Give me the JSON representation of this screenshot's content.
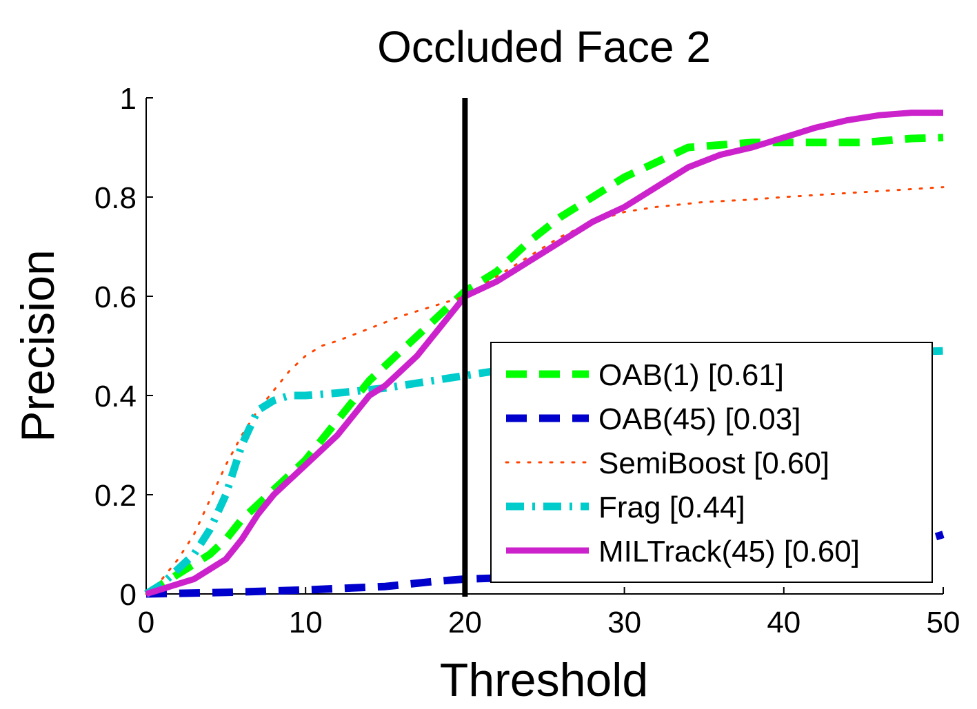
{
  "chart_data": {
    "type": "line",
    "title": "Occluded Face 2",
    "xlabel": "Threshold",
    "ylabel": "Precision",
    "xlim": [
      0,
      50
    ],
    "ylim": [
      0,
      1
    ],
    "xticks": [
      0,
      10,
      20,
      30,
      40,
      50
    ],
    "yticks": [
      0,
      0.2,
      0.4,
      0.6,
      0.8,
      1
    ],
    "xtick_labels": [
      "0",
      "10",
      "20",
      "30",
      "40",
      "50"
    ],
    "ytick_labels": [
      "0",
      "0.2",
      "0.4",
      "0.6",
      "0.8",
      "1"
    ],
    "grid": false,
    "legend_position": "lower-right",
    "threshold_line": 20,
    "series": [
      {
        "name": "OAB(1) [0.61]",
        "color": "#00ff00",
        "style": "dashed",
        "x": [
          0,
          2,
          4,
          5,
          6,
          7,
          8,
          9,
          10,
          11,
          12,
          13,
          14,
          15,
          16,
          17,
          18,
          19,
          20,
          22,
          24,
          26,
          28,
          30,
          32,
          34,
          36,
          38,
          40,
          42,
          45,
          48,
          50
        ],
        "y": [
          0,
          0.04,
          0.08,
          0.11,
          0.15,
          0.18,
          0.21,
          0.24,
          0.27,
          0.31,
          0.35,
          0.39,
          0.43,
          0.46,
          0.49,
          0.52,
          0.55,
          0.58,
          0.61,
          0.65,
          0.71,
          0.76,
          0.8,
          0.84,
          0.87,
          0.9,
          0.905,
          0.91,
          0.91,
          0.91,
          0.91,
          0.918,
          0.92
        ]
      },
      {
        "name": "OAB(45) [0.03]",
        "color": "#0000cc",
        "style": "dashed",
        "x": [
          0,
          5,
          10,
          15,
          18,
          20,
          25,
          30,
          35,
          40,
          45,
          48,
          50
        ],
        "y": [
          0,
          0.003,
          0.008,
          0.015,
          0.025,
          0.03,
          0.035,
          0.04,
          0.045,
          0.055,
          0.07,
          0.1,
          0.12
        ]
      },
      {
        "name": "SemiBoost [0.60]",
        "color": "#ff4400",
        "style": "dotted",
        "x": [
          0,
          1,
          2,
          3,
          4,
          5,
          6,
          7,
          8,
          9,
          10,
          11,
          12,
          14,
          16,
          18,
          20,
          22,
          24,
          26,
          28,
          30,
          32,
          35,
          38,
          40,
          45,
          50
        ],
        "y": [
          0,
          0.03,
          0.07,
          0.12,
          0.19,
          0.26,
          0.32,
          0.37,
          0.41,
          0.45,
          0.48,
          0.5,
          0.51,
          0.535,
          0.56,
          0.58,
          0.6,
          0.64,
          0.68,
          0.72,
          0.75,
          0.77,
          0.78,
          0.79,
          0.795,
          0.8,
          0.81,
          0.82
        ]
      },
      {
        "name": "Frag [0.44]",
        "color": "#00cccc",
        "style": "dashdot",
        "x": [
          0,
          1,
          2,
          3,
          4,
          5,
          6,
          7,
          8,
          9,
          10,
          12,
          15,
          18,
          20,
          22,
          25,
          30,
          35,
          40,
          45,
          50
        ],
        "y": [
          0,
          0.02,
          0.05,
          0.08,
          0.13,
          0.2,
          0.3,
          0.37,
          0.39,
          0.4,
          0.4,
          0.405,
          0.415,
          0.43,
          0.44,
          0.45,
          0.46,
          0.47,
          0.475,
          0.48,
          0.485,
          0.49
        ]
      },
      {
        "name": "MILTrack(45) [0.60]",
        "color": "#cc22cc",
        "style": "solid",
        "x": [
          0,
          1,
          2,
          3,
          4,
          5,
          6,
          7,
          8,
          9,
          10,
          11,
          12,
          13,
          14,
          15,
          16,
          17,
          18,
          19,
          20,
          22,
          24,
          26,
          28,
          30,
          32,
          34,
          36,
          38,
          40,
          42,
          44,
          46,
          48,
          50
        ],
        "y": [
          0,
          0.01,
          0.02,
          0.03,
          0.05,
          0.07,
          0.11,
          0.16,
          0.2,
          0.23,
          0.26,
          0.29,
          0.32,
          0.36,
          0.4,
          0.42,
          0.45,
          0.48,
          0.52,
          0.56,
          0.6,
          0.63,
          0.67,
          0.71,
          0.75,
          0.78,
          0.82,
          0.86,
          0.885,
          0.9,
          0.92,
          0.94,
          0.955,
          0.965,
          0.97,
          0.97
        ]
      }
    ]
  }
}
